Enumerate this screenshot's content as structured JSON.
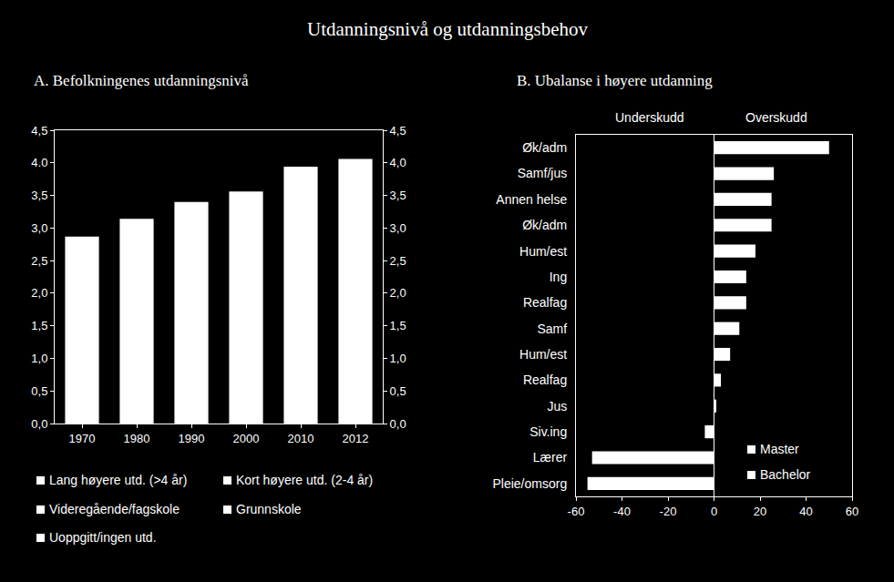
{
  "title": "Utdanningsnivå og utdanningsbehov",
  "chart_data": [
    {
      "type": "bar",
      "title": "A. Befolkningenes utdanningsnivå",
      "categories": [
        "1970",
        "1980",
        "1990",
        "2000",
        "2010",
        "2012"
      ],
      "values": [
        2.87,
        3.14,
        3.4,
        3.56,
        3.94,
        4.06
      ],
      "color": "#ffffff",
      "legend_labels": [
        "Lang høyere utd. (>4 år)",
        "Kort høyere utd. (2-4 år)",
        "Videregående/fagskole",
        "Grunnskole",
        "Uoppgitt/ingen utd."
      ],
      "ylim": [
        0,
        4.5
      ],
      "yticks": [
        {
          "value": 0,
          "label": "0,0"
        },
        {
          "value": 0.5,
          "label": "0,5"
        },
        {
          "value": 1,
          "label": "1,0"
        },
        {
          "value": 1.5,
          "label": "1,5"
        },
        {
          "value": 2,
          "label": "2,0"
        },
        {
          "value": 2.5,
          "label": "2,5"
        },
        {
          "value": 3,
          "label": "3,0"
        },
        {
          "value": 3.5,
          "label": "3,5"
        },
        {
          "value": 4,
          "label": "4.0"
        },
        {
          "value": 4.5,
          "label": "4,5"
        }
      ],
      "y2lim": [
        0,
        4.5
      ],
      "y2ticks": [
        {
          "value": 0,
          "label": "0,0"
        },
        {
          "value": 0.5,
          "label": "0,5"
        },
        {
          "value": 1,
          "label": "1,0"
        },
        {
          "value": 1.5,
          "label": "1,5"
        },
        {
          "value": 2,
          "label": "2,0"
        },
        {
          "value": 2.5,
          "label": "2,5"
        },
        {
          "value": 3,
          "label": "3,0"
        },
        {
          "value": 3.5,
          "label": "3,5"
        },
        {
          "value": 4,
          "label": "4,0"
        },
        {
          "value": 4.5,
          "label": "4,5"
        }
      ],
      "grid": false
    },
    {
      "type": "bar",
      "orientation": "horizontal",
      "title": "B. Ubalanse i høyere utdanning",
      "categories": [
        "Øk/adm",
        "Samf/jus",
        "Annen helse",
        "Øk/adm",
        "Hum/est",
        "Ing",
        "Realfag",
        "Samf",
        "Hum/est",
        "Realfag",
        "Jus",
        "Siv.ing",
        "Lærer",
        "Pleie/omsorg"
      ],
      "values": [
        50,
        26,
        25,
        25,
        18,
        14,
        14,
        11,
        7,
        3,
        1,
        -4,
        -53,
        -55
      ],
      "color": "#ffffff",
      "legend_labels": [
        "Master",
        "Bachelor"
      ],
      "annotations": [
        "Underskudd",
        "Overskudd"
      ],
      "xlim": [
        -60,
        60
      ],
      "xticks": [
        -60,
        -40,
        -20,
        0,
        20,
        40,
        60
      ],
      "grid": false
    }
  ]
}
